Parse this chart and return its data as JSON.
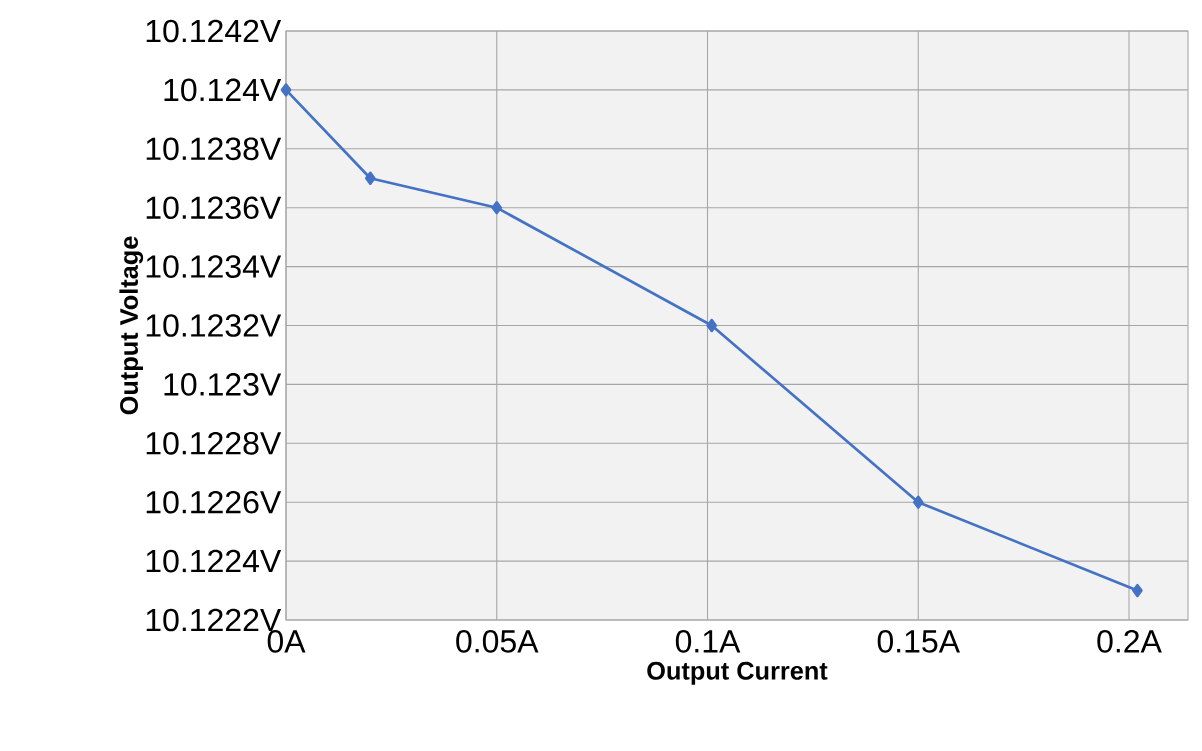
{
  "chart_data": {
    "type": "line",
    "xlabel": "Output Current",
    "ylabel": "Output Voltage",
    "x": [
      0,
      0.02,
      0.05,
      0.101,
      0.15,
      0.202
    ],
    "series": [
      {
        "color": "#4472c4",
        "values": [
          10.124,
          10.1237,
          10.1236,
          10.1232,
          10.1226,
          10.1223
        ]
      }
    ],
    "xlim": [
      0,
      0.214
    ],
    "ylim": [
      10.1222,
      10.1242
    ],
    "xticks": [
      {
        "value": 0,
        "label": "0A"
      },
      {
        "value": 0.05,
        "label": "0.05A"
      },
      {
        "value": 0.1,
        "label": "0.1A"
      },
      {
        "value": 0.15,
        "label": "0.15A"
      },
      {
        "value": 0.2,
        "label": "0.2A"
      }
    ],
    "yticks": [
      {
        "value": 10.1222,
        "label": "10.1222V"
      },
      {
        "value": 10.1224,
        "label": "10.1224V"
      },
      {
        "value": 10.1226,
        "label": "10.1226V"
      },
      {
        "value": 10.1228,
        "label": "10.1228V"
      },
      {
        "value": 10.123,
        "label": "10.123V"
      },
      {
        "value": 10.1232,
        "label": "10.1232V"
      },
      {
        "value": 10.1234,
        "label": "10.1234V"
      },
      {
        "value": 10.1236,
        "label": "10.1236V"
      },
      {
        "value": 10.1238,
        "label": "10.1238V"
      },
      {
        "value": 10.124,
        "label": "10.124V"
      },
      {
        "value": 10.1242,
        "label": "10.1242V"
      }
    ],
    "grid": true,
    "marker": "diamond",
    "line_style": "solid"
  }
}
